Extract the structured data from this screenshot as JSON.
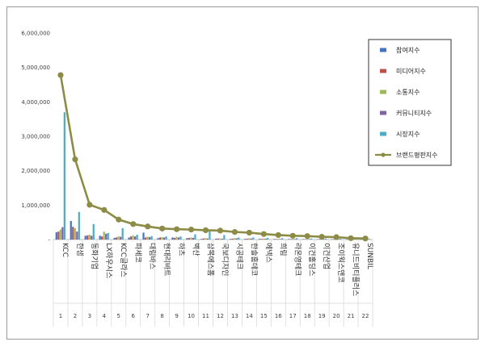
{
  "chart_data": {
    "type": "bar",
    "categories": [
      "KCC",
      "한샘",
      "동화기업",
      "LX하우시스",
      "KCC글라스",
      "파세코",
      "대림바스",
      "현대리바트",
      "하츠",
      "벽산",
      "삼목에스폼",
      "국보디자인",
      "시공테크",
      "한솔홈데코",
      "에넥스",
      "희림",
      "라온영테크",
      "이건홀딩스",
      "이건산업",
      "조이웍스앤코",
      "유니드비티플러스",
      "SUNBIL"
    ],
    "index_labels": [
      "1",
      "2",
      "3",
      "4",
      "5",
      "6",
      "7",
      "8",
      "9",
      "10",
      "11",
      "12",
      "13",
      "14",
      "15",
      "16",
      "17",
      "18",
      "19",
      "20",
      "21",
      "22"
    ],
    "ylim": [
      0,
      6000000
    ],
    "yticks": [
      "-",
      "1,000,000",
      "2,000,000",
      "3,000,000",
      "4,000,000",
      "5,000,000",
      "6,000,000"
    ],
    "legend_position": "top-right",
    "series": [
      {
        "name": "참여지수",
        "color": "#4472c4",
        "values": [
          210000,
          540000,
          110000,
          110000,
          50000,
          60000,
          200000,
          40000,
          60000,
          40000,
          20000,
          25000,
          20000,
          20000,
          20000,
          15000,
          15000,
          12000,
          12000,
          10000,
          8000,
          8000
        ]
      },
      {
        "name": "미디어지수",
        "color": "#c0504d",
        "values": [
          230000,
          370000,
          120000,
          90000,
          60000,
          90000,
          60000,
          60000,
          50000,
          45000,
          30000,
          30000,
          25000,
          25000,
          20000,
          15000,
          15000,
          12000,
          12000,
          10000,
          8000,
          8000
        ]
      },
      {
        "name": "소통지수",
        "color": "#9bbb59",
        "values": [
          290000,
          330000,
          140000,
          230000,
          90000,
          120000,
          80000,
          70000,
          80000,
          60000,
          40000,
          30000,
          40000,
          35000,
          30000,
          20000,
          20000,
          15000,
          15000,
          12000,
          10000,
          10000
        ]
      },
      {
        "name": "커뮤니티지수",
        "color": "#8064a2",
        "values": [
          360000,
          230000,
          110000,
          170000,
          80000,
          90000,
          70000,
          60000,
          60000,
          50000,
          30000,
          25000,
          35000,
          30000,
          25000,
          15000,
          15000,
          12000,
          12000,
          10000,
          8000,
          8000
        ]
      },
      {
        "name": "시장지수",
        "color": "#4bacc6",
        "values": [
          3700000,
          800000,
          450000,
          190000,
          330000,
          140000,
          100000,
          90000,
          90000,
          150000,
          240000,
          130000,
          60000,
          60000,
          50000,
          40000,
          40000,
          30000,
          30000,
          25000,
          20000,
          18000
        ]
      },
      {
        "name": "브랜드평판지수",
        "type": "line",
        "color": "#8c8c46",
        "values": [
          4780000,
          2330000,
          1010000,
          860000,
          580000,
          450000,
          380000,
          320000,
          300000,
          290000,
          270000,
          260000,
          220000,
          200000,
          160000,
          130000,
          110000,
          100000,
          80000,
          70000,
          40000,
          30000
        ]
      }
    ]
  }
}
